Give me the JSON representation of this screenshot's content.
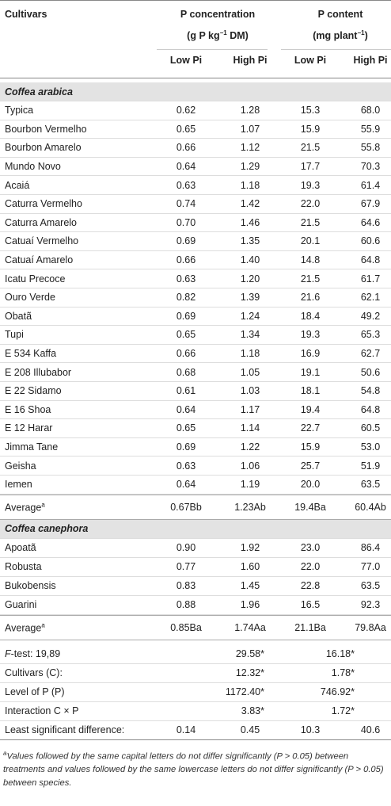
{
  "header": {
    "cultivars": "Cultivars",
    "groups": [
      {
        "title": "P concentration",
        "unit": {
          "pre": "(g P kg",
          "sup": "−1",
          "post": " DM)"
        }
      },
      {
        "title": "P content",
        "unit": {
          "pre": "(mg plant",
          "sup": "−1",
          "post": ")"
        }
      }
    ],
    "subcolumns": [
      "Low Pi",
      "High Pi",
      "Low Pi",
      "High Pi"
    ]
  },
  "sections": [
    {
      "title": "Coffea arabica",
      "rows": [
        [
          "Typica",
          "0.62",
          "1.28",
          "15.3",
          "68.0"
        ],
        [
          "Bourbon Vermelho",
          "0.65",
          "1.07",
          "15.9",
          "55.9"
        ],
        [
          "Bourbon Amarelo",
          "0.66",
          "1.12",
          "21.5",
          "55.8"
        ],
        [
          "Mundo Novo",
          "0.64",
          "1.29",
          "17.7",
          "70.3"
        ],
        [
          "Acaiá",
          "0.63",
          "1.18",
          "19.3",
          "61.4"
        ],
        [
          "Caturra Vermelho",
          "0.74",
          "1.42",
          "22.0",
          "67.9"
        ],
        [
          "Caturra Amarelo",
          "0.70",
          "1.46",
          "21.5",
          "64.6"
        ],
        [
          "Catuaí Vermelho",
          "0.69",
          "1.35",
          "20.1",
          "60.6"
        ],
        [
          "Catuaí Amarelo",
          "0.66",
          "1.40",
          "14.8",
          "64.8"
        ],
        [
          "Icatu Precoce",
          "0.63",
          "1.20",
          "21.5",
          "61.7"
        ],
        [
          "Ouro Verde",
          "0.82",
          "1.39",
          "21.6",
          "62.1"
        ],
        [
          "Obatã",
          "0.69",
          "1.24",
          "18.4",
          "49.2"
        ],
        [
          "Tupi",
          "0.65",
          "1.34",
          "19.3",
          "65.3"
        ],
        [
          "E 534 Kaffa",
          "0.66",
          "1.18",
          "16.9",
          "62.7"
        ],
        [
          "E 208 Illubabor",
          "0.68",
          "1.05",
          "19.1",
          "50.6"
        ],
        [
          "E 22 Sidamo",
          "0.61",
          "1.03",
          "18.1",
          "54.8"
        ],
        [
          "E 16 Shoa",
          "0.64",
          "1.17",
          "19.4",
          "64.8"
        ],
        [
          "E 12 Harar",
          "0.65",
          "1.14",
          "22.7",
          "60.5"
        ],
        [
          "Jimma Tane",
          "0.69",
          "1.22",
          "15.9",
          "53.0"
        ],
        [
          "Geisha",
          "0.63",
          "1.06",
          "25.7",
          "51.9"
        ],
        [
          "Iemen",
          "0.64",
          "1.19",
          "20.0",
          "63.5"
        ]
      ],
      "average": {
        "label": "Average",
        "sup": "a",
        "values": [
          "0.67Bb",
          "1.23Ab",
          "19.4Ba",
          "60.4Ab"
        ]
      }
    },
    {
      "title": "Coffea canephora",
      "rows": [
        [
          "Apoatã",
          "0.90",
          "1.92",
          "23.0",
          "86.4"
        ],
        [
          "Robusta",
          "0.77",
          "1.60",
          "22.0",
          "77.0"
        ],
        [
          "Bukobensis",
          "0.83",
          "1.45",
          "22.8",
          "63.5"
        ],
        [
          "Guarini",
          "0.88",
          "1.96",
          "16.5",
          "92.3"
        ]
      ],
      "average": {
        "label": "Average",
        "sup": "a",
        "values": [
          "0.85Ba",
          "1.74Aa",
          "21.1Ba",
          "79.8Aa"
        ]
      }
    }
  ],
  "stats": {
    "ftest": {
      "italic": "F",
      "label": "-test: 19,89",
      "conc": "29.58*",
      "content": "16.18*"
    },
    "rows": [
      {
        "label": "Cultivars (C):",
        "conc": "12.32*",
        "content": "1.78*"
      },
      {
        "label": "Level of P (P)",
        "conc": "1172.40*",
        "content": "746.92*"
      },
      {
        "label": "Interaction C × P",
        "conc": "3.83*",
        "content": "1.72*"
      }
    ],
    "lsd": {
      "label": "Least significant difference:",
      "values": [
        "0.14",
        "0.45",
        "10.3",
        "40.6"
      ]
    }
  },
  "footnote": {
    "marker": "a",
    "parts": [
      "Values followed by the same capital letters do not differ significantly (",
      "P",
      " > 0.05) between treatments and values followed by the same lowercase letters do not differ significantly (",
      "P",
      " > 0.05) between species."
    ]
  }
}
